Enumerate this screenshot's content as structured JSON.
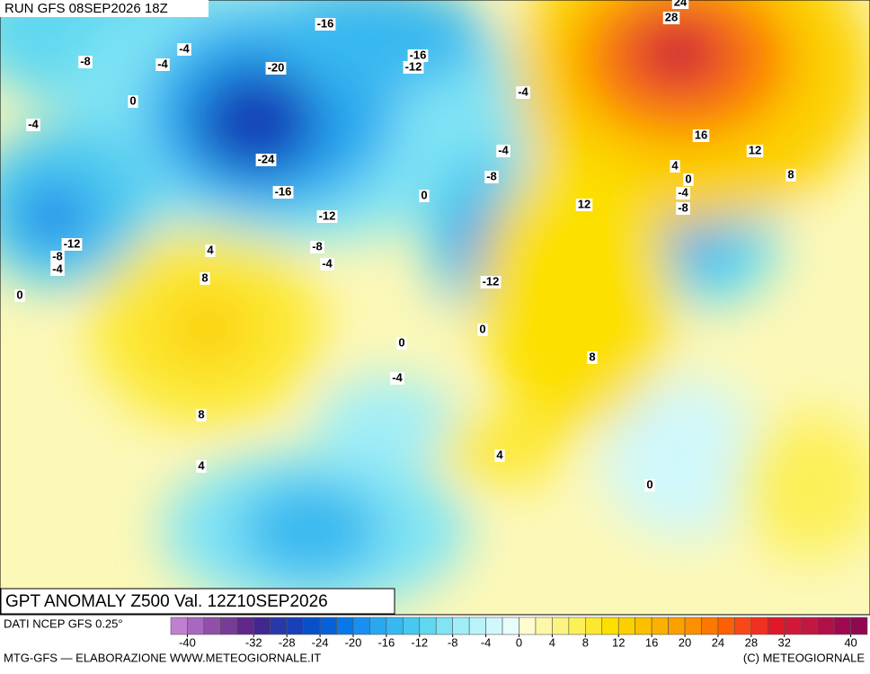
{
  "header": {
    "run": "RUN GFS 08SEP2026 18Z"
  },
  "map": {
    "contour_labels": [
      -16,
      -4,
      -8,
      -4,
      -16,
      -12,
      -20,
      0,
      -4,
      -4,
      -24,
      -4,
      -8,
      -16,
      0,
      -12,
      -12,
      -8,
      -4,
      -8,
      -4,
      4,
      8,
      0,
      -12,
      0,
      0,
      -4,
      8,
      8,
      4,
      4,
      0,
      28,
      24,
      16,
      12,
      8,
      4,
      0,
      -4,
      -8,
      12
    ]
  },
  "footer": {
    "title": "GPT ANOMALY Z500 Val. 12Z10SEP2026",
    "source": "DATI NCEP GFS 0.25°",
    "credit": "MTG-GFS — ELABORAZIONE WWW.METEOGIORNALE.IT",
    "copyright": "(C) METEOGIORNALE",
    "colorbar": {
      "range": [
        -42,
        42
      ],
      "colors": [
        "#c080d0",
        "#a868c0",
        "#9050a8",
        "#783c98",
        "#602888",
        "#402890",
        "#2838a8",
        "#1840b8",
        "#0850c8",
        "#0860d8",
        "#0878e8",
        "#1890f0",
        "#28a8f0",
        "#38b8f0",
        "#48c8f0",
        "#60d8f0",
        "#80e4f4",
        "#a0eef8",
        "#b8f4fa",
        "#d0f8fb",
        "#e8fcfc",
        "#fefcd0",
        "#fcf8a8",
        "#fcf480",
        "#fcf058",
        "#fce830",
        "#fce000",
        "#fcd000",
        "#fcc000",
        "#fcb000",
        "#fca000",
        "#fc9000",
        "#fc7800",
        "#fc6000",
        "#f84818",
        "#f03020",
        "#e01828",
        "#d01838",
        "#c01840",
        "#b01048",
        "#a00850",
        "#900850"
      ],
      "ticks": [
        -40,
        -32,
        -28,
        -24,
        -20,
        -16,
        -12,
        -8,
        -4,
        0,
        4,
        8,
        12,
        16,
        20,
        24,
        28,
        32,
        40
      ]
    }
  }
}
